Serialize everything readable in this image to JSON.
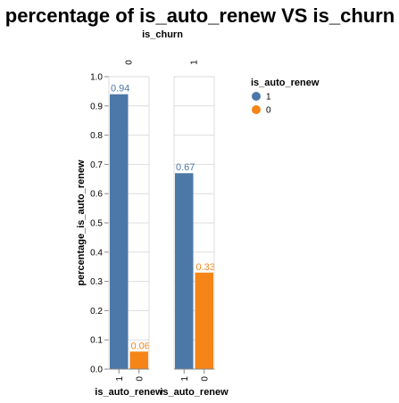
{
  "chart_data": {
    "type": "bar",
    "title": "percentage of is_auto_renew VS is_churn",
    "facet_title": "is_churn",
    "xlabel": "is_auto_renew",
    "ylabel": "percentage_is_auto_renew",
    "ylim": [
      0,
      1
    ],
    "yticks": [
      "0.0",
      "0.1",
      "0.2",
      "0.3",
      "0.4",
      "0.5",
      "0.6",
      "0.7",
      "0.8",
      "0.9",
      "1.0"
    ],
    "grid": true,
    "facets": [
      {
        "label": "0",
        "bars": [
          {
            "category": "1",
            "value": 0.94,
            "label": "0.94",
            "color": "#4c78a8"
          },
          {
            "category": "0",
            "value": 0.06,
            "label": "0.06",
            "color": "#f58518"
          }
        ]
      },
      {
        "label": "1",
        "bars": [
          {
            "category": "1",
            "value": 0.67,
            "label": "0.67",
            "color": "#4c78a8"
          },
          {
            "category": "0",
            "value": 0.33,
            "label": "0.33",
            "color": "#f58518"
          }
        ]
      }
    ],
    "legend": {
      "title": "is_auto_renew",
      "position": "right",
      "items": [
        {
          "label": "1",
          "color": "#4c78a8"
        },
        {
          "label": "0",
          "color": "#f58518"
        }
      ]
    }
  }
}
